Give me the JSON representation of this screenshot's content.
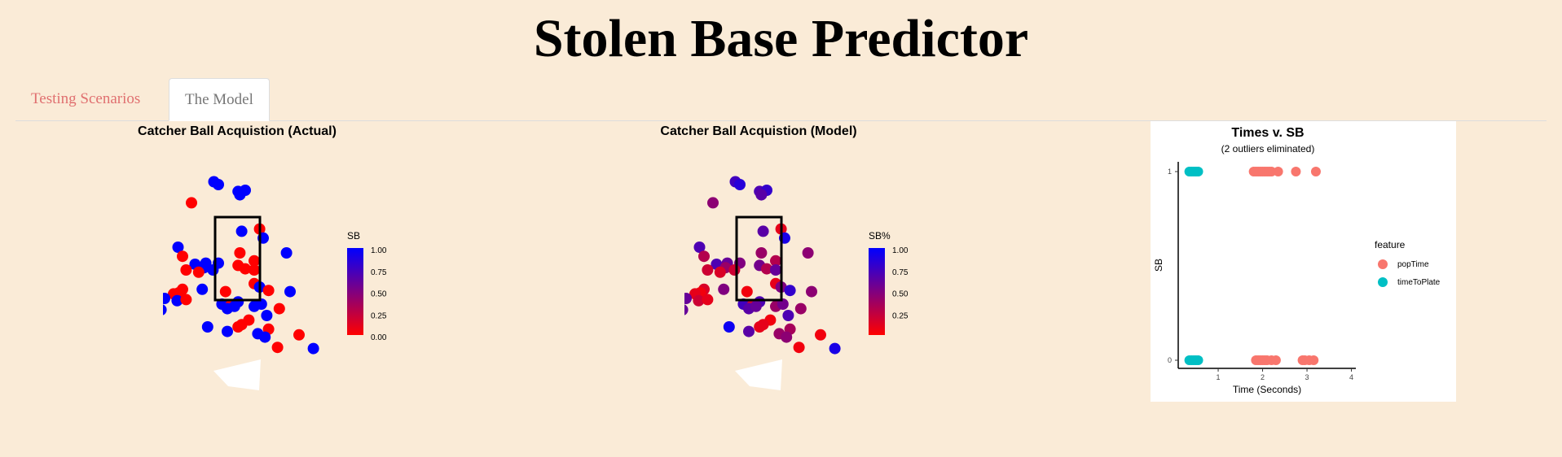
{
  "app": {
    "title": "Stolen Base Predictor"
  },
  "tabs": [
    {
      "label": "Testing Scenarios",
      "active": false
    },
    {
      "label": "The Model",
      "active": true
    }
  ],
  "colors": {
    "sb_low": "#ff0000",
    "sb_high": "#0000ff",
    "popTime": "#f8766d",
    "timeToPlate": "#00bfc4",
    "background": "#faebd7"
  },
  "chart_data": [
    {
      "type": "scatter",
      "title": "Catcher Ball Acquistion (Actual)",
      "legend_title": "SB",
      "colorbar_ticks": [
        "1.00",
        "0.75",
        "0.50",
        "0.25",
        "0.00"
      ],
      "points": [
        {
          "x": -0.25,
          "y": 2.95,
          "v": 1
        },
        {
          "x": -0.2,
          "y": 2.9,
          "v": 1
        },
        {
          "x": 0.02,
          "y": 2.78,
          "v": 1
        },
        {
          "x": 0.1,
          "y": 2.8,
          "v": 1
        },
        {
          "x": 0.04,
          "y": 2.72,
          "v": 1
        },
        {
          "x": -0.5,
          "y": 2.58,
          "v": 0
        },
        {
          "x": 0.26,
          "y": 2.12,
          "v": 0
        },
        {
          "x": 0.06,
          "y": 2.08,
          "v": 1
        },
        {
          "x": 0.3,
          "y": 1.96,
          "v": 1
        },
        {
          "x": -0.65,
          "y": 1.8,
          "v": 1
        },
        {
          "x": 0.56,
          "y": 1.7,
          "v": 1
        },
        {
          "x": 0.04,
          "y": 1.7,
          "v": 0
        },
        {
          "x": -0.6,
          "y": 1.64,
          "v": 0
        },
        {
          "x": 0.2,
          "y": 1.56,
          "v": 0
        },
        {
          "x": -0.46,
          "y": 1.5,
          "v": 1
        },
        {
          "x": -0.34,
          "y": 1.52,
          "v": 1
        },
        {
          "x": -0.2,
          "y": 1.52,
          "v": 1
        },
        {
          "x": -0.36,
          "y": 1.44,
          "v": 1
        },
        {
          "x": -0.26,
          "y": 1.4,
          "v": 1
        },
        {
          "x": -0.56,
          "y": 1.4,
          "v": 0
        },
        {
          "x": 0.02,
          "y": 1.48,
          "v": 0
        },
        {
          "x": 0.1,
          "y": 1.42,
          "v": 0
        },
        {
          "x": 0.2,
          "y": 1.4,
          "v": 0
        },
        {
          "x": -0.42,
          "y": 1.36,
          "v": 0
        },
        {
          "x": 0.2,
          "y": 1.16,
          "v": 0
        },
        {
          "x": 0.26,
          "y": 1.1,
          "v": 1
        },
        {
          "x": 0.6,
          "y": 1.02,
          "v": 1
        },
        {
          "x": -0.6,
          "y": 1.06,
          "v": 0
        },
        {
          "x": -0.38,
          "y": 1.06,
          "v": 1
        },
        {
          "x": -0.12,
          "y": 1.02,
          "v": 0
        },
        {
          "x": 0.36,
          "y": 1.04,
          "v": 0
        },
        {
          "x": -0.64,
          "y": 1,
          "v": 0
        },
        {
          "x": -0.7,
          "y": 0.98,
          "v": 0
        },
        {
          "x": -0.8,
          "y": 0.9,
          "v": 1
        },
        {
          "x": -0.66,
          "y": 0.86,
          "v": 1
        },
        {
          "x": -0.56,
          "y": 0.88,
          "v": 0
        },
        {
          "x": -0.16,
          "y": 0.8,
          "v": 1
        },
        {
          "x": 0.02,
          "y": 0.84,
          "v": 1
        },
        {
          "x": -0.06,
          "y": 0.78,
          "v": 0
        },
        {
          "x": 0.2,
          "y": 0.76,
          "v": 1
        },
        {
          "x": 0.28,
          "y": 0.8,
          "v": 1
        },
        {
          "x": -0.1,
          "y": 0.72,
          "v": 1
        },
        {
          "x": -0.02,
          "y": 0.76,
          "v": 1
        },
        {
          "x": 0.48,
          "y": 0.72,
          "v": 0
        },
        {
          "x": -0.84,
          "y": 0.7,
          "v": 1
        },
        {
          "x": 0.34,
          "y": 0.6,
          "v": 1
        },
        {
          "x": 0.14,
          "y": 0.52,
          "v": 0
        },
        {
          "x": 0.06,
          "y": 0.44,
          "v": 0
        },
        {
          "x": -0.32,
          "y": 0.4,
          "v": 1
        },
        {
          "x": 0.02,
          "y": 0.4,
          "v": 0
        },
        {
          "x": 0.36,
          "y": 0.36,
          "v": 0
        },
        {
          "x": -0.1,
          "y": 0.32,
          "v": 1
        },
        {
          "x": 0.24,
          "y": 0.28,
          "v": 1
        },
        {
          "x": 0.32,
          "y": 0.22,
          "v": 1
        },
        {
          "x": 0.7,
          "y": 0.26,
          "v": 0
        },
        {
          "x": 0.46,
          "y": 0.04,
          "v": 0
        },
        {
          "x": 0.86,
          "y": 0.02,
          "v": 1
        }
      ]
    },
    {
      "type": "scatter",
      "title": "Catcher Ball Acquistion (Model)",
      "legend_title": "SB%",
      "colorbar_ticks": [
        "1.00",
        "0.75",
        "0.50",
        "0.25"
      ],
      "points": [
        {
          "x": -0.25,
          "y": 2.95,
          "v": 0.75
        },
        {
          "x": -0.2,
          "y": 2.9,
          "v": 0.85
        },
        {
          "x": 0.02,
          "y": 2.78,
          "v": 0.7
        },
        {
          "x": 0.1,
          "y": 2.8,
          "v": 0.8
        },
        {
          "x": 0.04,
          "y": 2.72,
          "v": 0.65
        },
        {
          "x": -0.5,
          "y": 2.58,
          "v": 0.45
        },
        {
          "x": 0.26,
          "y": 2.12,
          "v": 0.1
        },
        {
          "x": 0.06,
          "y": 2.08,
          "v": 0.65
        },
        {
          "x": 0.3,
          "y": 1.96,
          "v": 0.9
        },
        {
          "x": -0.65,
          "y": 1.8,
          "v": 0.7
        },
        {
          "x": 0.56,
          "y": 1.7,
          "v": 0.45
        },
        {
          "x": 0.04,
          "y": 1.7,
          "v": 0.4
        },
        {
          "x": -0.6,
          "y": 1.64,
          "v": 0.3
        },
        {
          "x": 0.2,
          "y": 1.56,
          "v": 0.3
        },
        {
          "x": -0.46,
          "y": 1.5,
          "v": 0.7
        },
        {
          "x": -0.34,
          "y": 1.52,
          "v": 0.6
        },
        {
          "x": -0.2,
          "y": 1.52,
          "v": 0.5
        },
        {
          "x": -0.36,
          "y": 1.44,
          "v": 0.4
        },
        {
          "x": -0.26,
          "y": 1.4,
          "v": 0.2
        },
        {
          "x": -0.56,
          "y": 1.4,
          "v": 0.2
        },
        {
          "x": 0.02,
          "y": 1.48,
          "v": 0.55
        },
        {
          "x": 0.1,
          "y": 1.42,
          "v": 0.3
        },
        {
          "x": 0.2,
          "y": 1.4,
          "v": 0.6
        },
        {
          "x": -0.42,
          "y": 1.36,
          "v": 0.15
        },
        {
          "x": 0.2,
          "y": 1.16,
          "v": 0.1
        },
        {
          "x": 0.26,
          "y": 1.1,
          "v": 0.5
        },
        {
          "x": 0.6,
          "y": 1.02,
          "v": 0.45
        },
        {
          "x": -0.6,
          "y": 1.06,
          "v": 0.15
        },
        {
          "x": -0.38,
          "y": 1.06,
          "v": 0.5
        },
        {
          "x": -0.12,
          "y": 1.02,
          "v": 0.05
        },
        {
          "x": 0.36,
          "y": 1.04,
          "v": 0.8
        },
        {
          "x": -0.64,
          "y": 1,
          "v": 0.05
        },
        {
          "x": -0.7,
          "y": 0.98,
          "v": 0.1
        },
        {
          "x": -0.8,
          "y": 0.9,
          "v": 0.6
        },
        {
          "x": -0.66,
          "y": 0.86,
          "v": 0.2
        },
        {
          "x": -0.56,
          "y": 0.88,
          "v": 0.1
        },
        {
          "x": -0.16,
          "y": 0.8,
          "v": 0.75
        },
        {
          "x": 0.02,
          "y": 0.84,
          "v": 0.7
        },
        {
          "x": -0.06,
          "y": 0.78,
          "v": 0.2
        },
        {
          "x": 0.2,
          "y": 0.76,
          "v": 0.4
        },
        {
          "x": 0.28,
          "y": 0.8,
          "v": 0.55
        },
        {
          "x": -0.1,
          "y": 0.72,
          "v": 0.65
        },
        {
          "x": -0.02,
          "y": 0.76,
          "v": 0.6
        },
        {
          "x": 0.48,
          "y": 0.72,
          "v": 0.4
        },
        {
          "x": -0.84,
          "y": 0.7,
          "v": 0.6
        },
        {
          "x": 0.34,
          "y": 0.6,
          "v": 0.7
        },
        {
          "x": 0.14,
          "y": 0.52,
          "v": 0.05
        },
        {
          "x": 0.06,
          "y": 0.44,
          "v": 0.1
        },
        {
          "x": -0.32,
          "y": 0.4,
          "v": 0.95
        },
        {
          "x": 0.02,
          "y": 0.4,
          "v": 0.1
        },
        {
          "x": 0.36,
          "y": 0.36,
          "v": 0.35
        },
        {
          "x": -0.1,
          "y": 0.32,
          "v": 0.65
        },
        {
          "x": 0.24,
          "y": 0.28,
          "v": 0.4
        },
        {
          "x": 0.32,
          "y": 0.22,
          "v": 0.45
        },
        {
          "x": 0.7,
          "y": 0.26,
          "v": 0.05
        },
        {
          "x": 0.46,
          "y": 0.04,
          "v": 0.05
        },
        {
          "x": 0.86,
          "y": 0.02,
          "v": 0.9
        }
      ]
    },
    {
      "type": "scatter",
      "title": "Times v. SB",
      "subtitle": "(2 outliers eliminated)",
      "xlabel": "Time (Seconds)",
      "ylabel": "SB",
      "xlim": [
        0.1,
        4.1
      ],
      "x_ticks": [
        1,
        2,
        3,
        4
      ],
      "y_ticks": [
        0,
        1
      ],
      "legend_title": "feature",
      "series": [
        {
          "name": "popTime",
          "color": "#f8766d",
          "points": [
            {
              "x": 1.8,
              "y": 1
            },
            {
              "x": 1.85,
              "y": 1
            },
            {
              "x": 1.9,
              "y": 1
            },
            {
              "x": 1.95,
              "y": 1
            },
            {
              "x": 2.0,
              "y": 1
            },
            {
              "x": 2.05,
              "y": 1
            },
            {
              "x": 2.1,
              "y": 1
            },
            {
              "x": 2.15,
              "y": 1
            },
            {
              "x": 2.2,
              "y": 1
            },
            {
              "x": 2.35,
              "y": 1
            },
            {
              "x": 2.75,
              "y": 1
            },
            {
              "x": 3.2,
              "y": 1
            },
            {
              "x": 1.85,
              "y": 0
            },
            {
              "x": 1.9,
              "y": 0
            },
            {
              "x": 1.95,
              "y": 0
            },
            {
              "x": 2.0,
              "y": 0
            },
            {
              "x": 2.05,
              "y": 0
            },
            {
              "x": 2.1,
              "y": 0
            },
            {
              "x": 2.2,
              "y": 0
            },
            {
              "x": 2.3,
              "y": 0
            },
            {
              "x": 2.9,
              "y": 0
            },
            {
              "x": 2.95,
              "y": 0
            },
            {
              "x": 3.05,
              "y": 0
            },
            {
              "x": 3.15,
              "y": 0
            }
          ]
        },
        {
          "name": "timeToPlate",
          "color": "#00bfc4",
          "points": [
            {
              "x": 0.35,
              "y": 1
            },
            {
              "x": 0.4,
              "y": 1
            },
            {
              "x": 0.45,
              "y": 1
            },
            {
              "x": 0.5,
              "y": 1
            },
            {
              "x": 0.55,
              "y": 1
            },
            {
              "x": 0.35,
              "y": 0
            },
            {
              "x": 0.4,
              "y": 0
            },
            {
              "x": 0.45,
              "y": 0
            },
            {
              "x": 0.5,
              "y": 0
            },
            {
              "x": 0.55,
              "y": 0
            }
          ]
        }
      ]
    }
  ]
}
